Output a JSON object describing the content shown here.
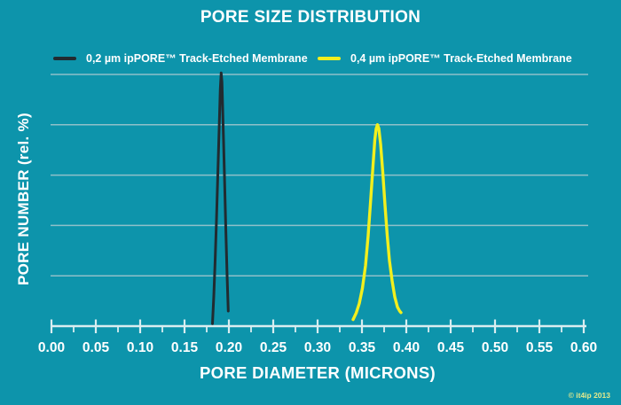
{
  "title": "PORE SIZE DISTRIBUTION",
  "copyright": "© it4ip 2013",
  "colors": {
    "background": "#0d94ab",
    "text": "#ffffff",
    "gridline": "#8fc0c9",
    "axis": "#d9edf0",
    "series_dark": "#222b30",
    "series_yellow": "#f2ef1d",
    "copyright_text": "#e3e98c"
  },
  "chart_data": {
    "type": "line",
    "title": "PORE SIZE DISTRIBUTION",
    "xlabel": "PORE DIAMETER (MICRONS)",
    "ylabel": "PORE NUMBER (rel. %)",
    "xlim": [
      0.0,
      0.6
    ],
    "x_major_tick_step": 0.05,
    "x_minor_tick_step": 0.025,
    "x_tick_labels": [
      "0.00",
      "0.05",
      "0.10",
      "0.15",
      "0.20",
      "0.25",
      "0.30",
      "0.35",
      "0.40",
      "0.45",
      "0.50",
      "0.55",
      "0.60"
    ],
    "ylim": [
      0,
      5.3
    ],
    "y_gridlines": [
      1,
      2,
      3,
      4,
      5
    ],
    "y_tick_labels": [],
    "grid": "horizontal",
    "legend_position": "top",
    "series": [
      {
        "name": "0,2 µm ipPORE™ Track-Etched Membrane",
        "color": "#222b30",
        "peak_x": 0.19,
        "points": [
          [
            0.1815,
            0.05
          ],
          [
            0.183,
            0.6
          ],
          [
            0.1845,
            1.3
          ],
          [
            0.186,
            2.1
          ],
          [
            0.1875,
            3.0
          ],
          [
            0.189,
            3.9
          ],
          [
            0.1903,
            4.7
          ],
          [
            0.1913,
            5.03
          ],
          [
            0.1922,
            4.85
          ],
          [
            0.1935,
            4.0
          ],
          [
            0.195,
            3.0
          ],
          [
            0.1965,
            1.95
          ],
          [
            0.198,
            1.0
          ],
          [
            0.1993,
            0.3
          ]
        ]
      },
      {
        "name": "0,4 µm ipPORE™ Track-Etched Membrane",
        "color": "#f2ef1d",
        "peak_x": 0.37,
        "points": [
          [
            0.34,
            0.13
          ],
          [
            0.3435,
            0.26
          ],
          [
            0.347,
            0.45
          ],
          [
            0.3505,
            0.75
          ],
          [
            0.354,
            1.2
          ],
          [
            0.357,
            1.8
          ],
          [
            0.36,
            2.55
          ],
          [
            0.3625,
            3.2
          ],
          [
            0.3645,
            3.7
          ],
          [
            0.366,
            3.92
          ],
          [
            0.3675,
            4.0
          ],
          [
            0.369,
            3.93
          ],
          [
            0.371,
            3.62
          ],
          [
            0.3735,
            3.05
          ],
          [
            0.376,
            2.4
          ],
          [
            0.3785,
            1.8
          ],
          [
            0.381,
            1.3
          ],
          [
            0.384,
            0.9
          ],
          [
            0.387,
            0.58
          ],
          [
            0.39,
            0.38
          ],
          [
            0.3925,
            0.3
          ],
          [
            0.394,
            0.27
          ]
        ]
      }
    ]
  }
}
